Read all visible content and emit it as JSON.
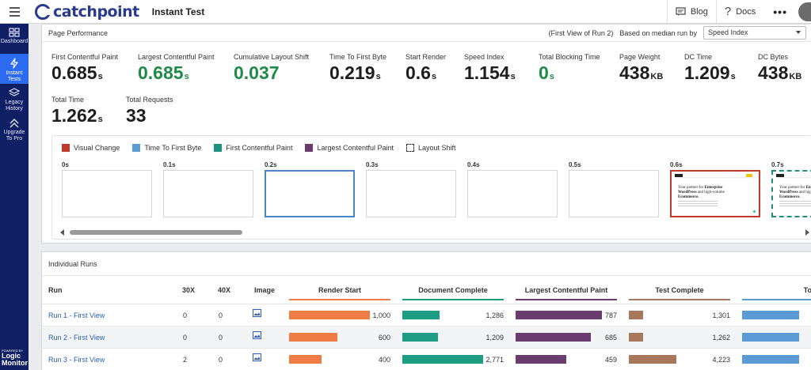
{
  "header": {
    "logo_text": "catchpoint",
    "title": "Instant Test",
    "blog_label": "Blog",
    "docs_label": "Docs",
    "more_label": "•••"
  },
  "sidebar": {
    "items": [
      {
        "label": "Dashboard",
        "icon": "dashboard-icon",
        "active": false
      },
      {
        "label": "Instant\nTests",
        "icon": "lightning-icon",
        "active": true
      },
      {
        "label": "Legacy\nHistory",
        "icon": "history-icon",
        "active": false
      },
      {
        "label": "Upgrade\nTo Pro",
        "icon": "upgrade-icon",
        "active": false
      }
    ],
    "powered_by": "POWERED BY",
    "powered_brand_1": "Logic",
    "powered_brand_2": "Monitor"
  },
  "performance": {
    "title": "Page Performance",
    "view_note": "(First View of Run 2)",
    "median_label": "Based on median run by",
    "median_select": "Speed Index",
    "metrics_row1": [
      {
        "label": "First Contentful Paint",
        "value": "0.685",
        "unit": "s",
        "color": "#1e1e1e"
      },
      {
        "label": "Largest Contentful Paint",
        "value": "0.685",
        "unit": "s",
        "color": "#1f8b48"
      },
      {
        "label": "Cumulative Layout Shift",
        "value": "0.037",
        "unit": "",
        "color": "#1f8b48"
      },
      {
        "label": "Time To First Byte",
        "value": "0.219",
        "unit": "s",
        "color": "#1e1e1e"
      },
      {
        "label": "Start Render",
        "value": "0.6",
        "unit": "s",
        "color": "#1e1e1e"
      },
      {
        "label": "Speed Index",
        "value": "1.154",
        "unit": "s",
        "color": "#1e1e1e"
      },
      {
        "label": "Total Blocking Time",
        "value": "0",
        "unit": "s",
        "color": "#1f8b48"
      },
      {
        "label": "Page Weight",
        "value": "438",
        "unit": "KB",
        "color": "#1e1e1e"
      },
      {
        "label": "DC Time",
        "value": "1.209",
        "unit": "s",
        "color": "#1e1e1e"
      },
      {
        "label": "DC Bytes",
        "value": "438",
        "unit": "KB",
        "color": "#1e1e1e"
      }
    ],
    "metrics_row2": [
      {
        "label": "Total Time",
        "value": "1.262",
        "unit": "s"
      },
      {
        "label": "Total Requests",
        "value": "33",
        "unit": ""
      }
    ]
  },
  "filmstrip": {
    "legend": [
      {
        "label": "Visual Change",
        "color": "#c0392b"
      },
      {
        "label": "Time To First Byte",
        "color": "#5b9bd5"
      },
      {
        "label": "First Contentful Paint",
        "color": "#1f9080"
      },
      {
        "label": "Largest Contentful Paint",
        "color": "#6b3d6e"
      },
      {
        "label": "Layout Shift",
        "color": "dashed"
      }
    ],
    "frames": [
      {
        "time": "0s",
        "style": "plain",
        "content": false
      },
      {
        "time": "0.1s",
        "style": "plain",
        "content": false
      },
      {
        "time": "0.2s",
        "style": "blue",
        "content": false
      },
      {
        "time": "0.3s",
        "style": "plain",
        "content": false
      },
      {
        "time": "0.4s",
        "style": "plain",
        "content": false
      },
      {
        "time": "0.5s",
        "style": "plain",
        "content": false
      },
      {
        "time": "0.6s",
        "style": "red",
        "content": true
      },
      {
        "time": "0.7s",
        "style": "dashed",
        "content": true
      }
    ],
    "shot_text_1": "Your partner for",
    "shot_text_2": "Enterprise",
    "shot_text_3": "WordPress",
    "shot_text_4": "and high-volume",
    "shot_text_5": "Ecommerce.",
    "scroll_position": 0.22
  },
  "runs": {
    "title": "Individual Runs",
    "columns": {
      "run": "Run",
      "c30x": "30X",
      "c40x": "40X",
      "image": "Image",
      "render_start": "Render Start",
      "document_complete": "Document Complete",
      "lcp": "Largest Contentful Paint",
      "test_complete": "Test Complete",
      "truncated": "To"
    },
    "metric_colors": {
      "render_start": "#f07c45",
      "document_complete": "#1f9c84",
      "lcp": "#6b3d6e",
      "test_complete": "#a8785c",
      "truncated": "#5b9bd5"
    },
    "max_values": {
      "render_start": 1000,
      "document_complete": 2771,
      "lcp": 787,
      "test_complete": 4223
    },
    "rows": [
      {
        "run": "Run 1 - First View",
        "c30x": "0",
        "c40x": "0",
        "render_start": 1000,
        "render_start_label": "1,000",
        "document_complete": 1286,
        "document_complete_label": "1,286",
        "lcp": 787,
        "lcp_label": "787",
        "test_complete": 1301,
        "test_complete_label": "1,301"
      },
      {
        "run": "Run 2 - First View",
        "c30x": "0",
        "c40x": "0",
        "render_start": 600,
        "render_start_label": "600",
        "document_complete": 1209,
        "document_complete_label": "1,209",
        "lcp": 685,
        "lcp_label": "685",
        "test_complete": 1262,
        "test_complete_label": "1,262"
      },
      {
        "run": "Run 3 - First View",
        "c30x": "2",
        "c40x": "0",
        "render_start": 400,
        "render_start_label": "400",
        "document_complete": 2771,
        "document_complete_label": "2,771",
        "lcp": 459,
        "lcp_label": "459",
        "test_complete": 4223,
        "test_complete_label": "4,223"
      }
    ]
  }
}
